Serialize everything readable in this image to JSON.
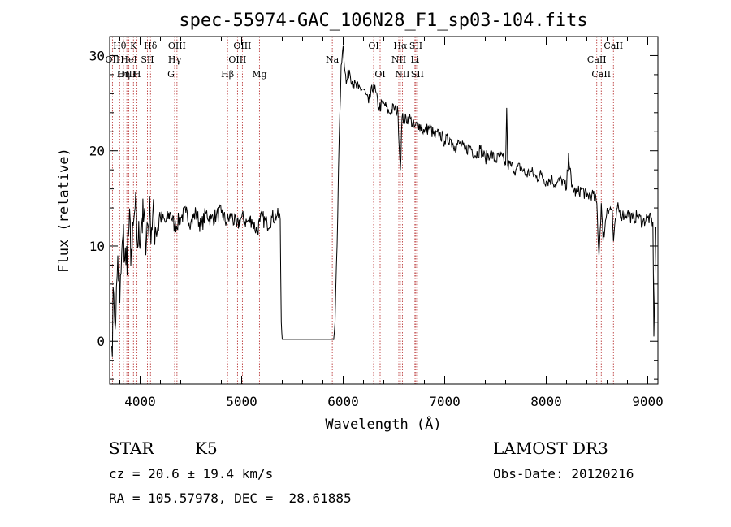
{
  "chart_data": {
    "type": "line",
    "title": "spec-55974-GAC_106N28_F1_sp03-104.fits",
    "xlabel": "Wavelength (Å)",
    "ylabel": "Flux (relative)",
    "xlim": [
      3700,
      9100
    ],
    "ylim": [
      -4.5,
      32
    ],
    "xticks": [
      4000,
      5000,
      6000,
      7000,
      8000,
      9000
    ],
    "yticks": [
      0,
      10,
      20,
      30
    ],
    "line_color": "#000000",
    "marker_color": "#b22222",
    "spectrum": {
      "x": [
        3720,
        3740,
        3760,
        3780,
        3800,
        3830,
        3860,
        3890,
        3920,
        3950,
        3980,
        4010,
        4050,
        4100,
        4150,
        4200,
        4250,
        4300,
        4340,
        4400,
        4450,
        4500,
        4550,
        4600,
        4650,
        4700,
        4750,
        4800,
        4850,
        4900,
        4950,
        5000,
        5050,
        5100,
        5150,
        5180,
        5200,
        5250,
        5300,
        5350,
        5380,
        5390,
        5400,
        5900,
        5920,
        5940,
        5960,
        5980,
        6000,
        6030,
        6060,
        6100,
        6150,
        6200,
        6250,
        6300,
        6350,
        6400,
        6450,
        6500,
        6540,
        6563,
        6580,
        6600,
        6650,
        6700,
        6750,
        6800,
        6850,
        6900,
        6950,
        7000,
        7050,
        7100,
        7150,
        7200,
        7250,
        7300,
        7350,
        7400,
        7450,
        7500,
        7550,
        7600,
        7610,
        7620,
        7650,
        7700,
        7750,
        7800,
        7850,
        7900,
        7950,
        8000,
        8050,
        8100,
        8150,
        8200,
        8220,
        8250,
        8300,
        8350,
        8400,
        8450,
        8498,
        8520,
        8542,
        8560,
        8600,
        8650,
        8662,
        8700,
        8750,
        8800,
        8850,
        8900,
        8950,
        9000,
        9050,
        9060,
        9080
      ],
      "y": [
        -0.5,
        5,
        2,
        9,
        4,
        11,
        8,
        12,
        9,
        14,
        10,
        13,
        11.5,
        13,
        12,
        13,
        12.5,
        13.5,
        12,
        13,
        13.5,
        12.5,
        13.5,
        12,
        13.5,
        12.8,
        13.2,
        13.5,
        12.5,
        13.2,
        12,
        13,
        12.5,
        12.8,
        11.5,
        12.5,
        13,
        12.3,
        13,
        13.2,
        12.8,
        2,
        0.2,
        0.2,
        2,
        10,
        21,
        29,
        31,
        27,
        28.5,
        27,
        26.5,
        26.5,
        25,
        27,
        24.5,
        25,
        24,
        24.5,
        24,
        18,
        23.5,
        23.2,
        23.5,
        22.5,
        22.8,
        22,
        22.5,
        21.5,
        21.8,
        21,
        21.3,
        20.5,
        20.8,
        20,
        20.5,
        19.5,
        20.2,
        19.2,
        19.8,
        19,
        19.5,
        18.5,
        24.5,
        18.5,
        18.5,
        18,
        18.3,
        17.5,
        17.8,
        17.2,
        17.5,
        16.8,
        17,
        16.5,
        17,
        16,
        19.8,
        16.2,
        15.5,
        16,
        15.2,
        15.5,
        14.5,
        9,
        14.5,
        10.5,
        14,
        13.8,
        10.5,
        14,
        13.2,
        13.5,
        12.8,
        13.2,
        12.5,
        13,
        12.5,
        0.5,
        12
      ]
    },
    "line_markers": [
      {
        "label": "Hθ",
        "x": 3798,
        "row": 1
      },
      {
        "label": "OII",
        "x": 3727,
        "row": 2
      },
      {
        "label": "OIII",
        "x": 3869,
        "row": 3
      },
      {
        "label": "K",
        "x": 3934,
        "row": 1
      },
      {
        "label": "HeI",
        "x": 3889,
        "row": 2
      },
      {
        "label": "Hη",
        "x": 3835,
        "row": 3
      },
      {
        "label": "Hδ",
        "x": 4102,
        "row": 1
      },
      {
        "label": "SII",
        "x": 4072,
        "row": 2
      },
      {
        "label": "H",
        "x": 3969,
        "row": 3
      },
      {
        "label": "OIII",
        "x": 4363,
        "row": 1
      },
      {
        "label": "Hγ",
        "x": 4340,
        "row": 2
      },
      {
        "label": "G",
        "x": 4304,
        "row": 3
      },
      {
        "label": "OIII",
        "x": 5007,
        "row": 1
      },
      {
        "label": "OIII",
        "x": 4959,
        "row": 2
      },
      {
        "label": "Hβ",
        "x": 4861,
        "row": 3
      },
      {
        "label": "Mg",
        "x": 5175,
        "row": 3
      },
      {
        "label": "Na",
        "x": 5893,
        "row": 2
      },
      {
        "label": "OI",
        "x": 6300,
        "row": 1
      },
      {
        "label": "OI",
        "x": 6364,
        "row": 3
      },
      {
        "label": "Hα",
        "x": 6563,
        "row": 1
      },
      {
        "label": "SII",
        "x": 6716,
        "row": 1
      },
      {
        "label": "NII",
        "x": 6548,
        "row": 2
      },
      {
        "label": "Li",
        "x": 6707,
        "row": 2
      },
      {
        "label": "NII",
        "x": 6583,
        "row": 3
      },
      {
        "label": "SII",
        "x": 6731,
        "row": 3
      },
      {
        "label": "CaII",
        "x": 8662,
        "row": 1
      },
      {
        "label": "CaII",
        "x": 8498,
        "row": 2
      },
      {
        "label": "CaII",
        "x": 8542,
        "row": 3
      }
    ]
  },
  "info": {
    "object_class": "STAR",
    "subclass": "K5",
    "redshift_line": "cz = 20.6 ± 19.4 km/s",
    "coords_line": "RA = 105.57978, DEC =  28.61885",
    "survey": "LAMOST DR3",
    "obs_date_line": "Obs-Date: 20120216"
  }
}
